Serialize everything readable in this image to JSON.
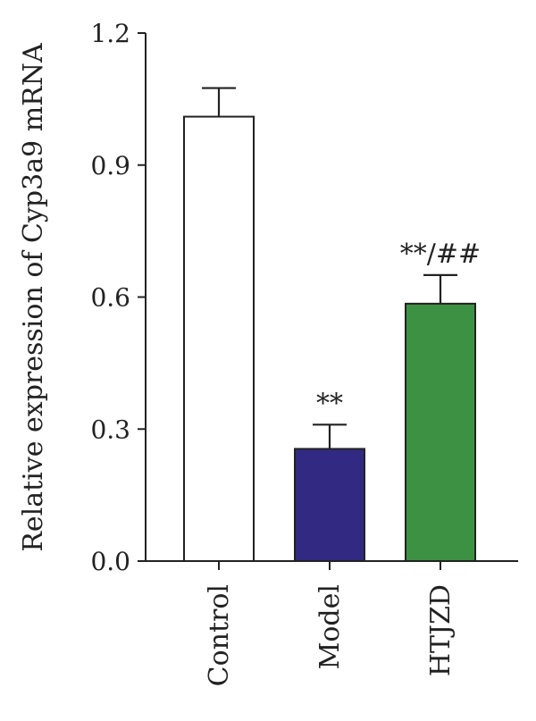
{
  "chart_data": {
    "type": "bar",
    "ylabel": "Relative expression of Cyp3a9 mRNA",
    "xlabel": "",
    "ylim": [
      0,
      1.2
    ],
    "yticks": [
      "0.0",
      "0.3",
      "0.6",
      "0.9",
      "1.2"
    ],
    "categories": [
      "Control",
      "Model",
      "HTJZD"
    ],
    "values": [
      1.01,
      0.255,
      0.585
    ],
    "errors": [
      0.065,
      0.055,
      0.065
    ],
    "colors": [
      "#ffffff",
      "#322a82",
      "#3c9143"
    ],
    "annotations": [
      "",
      "**",
      "**/##"
    ]
  }
}
